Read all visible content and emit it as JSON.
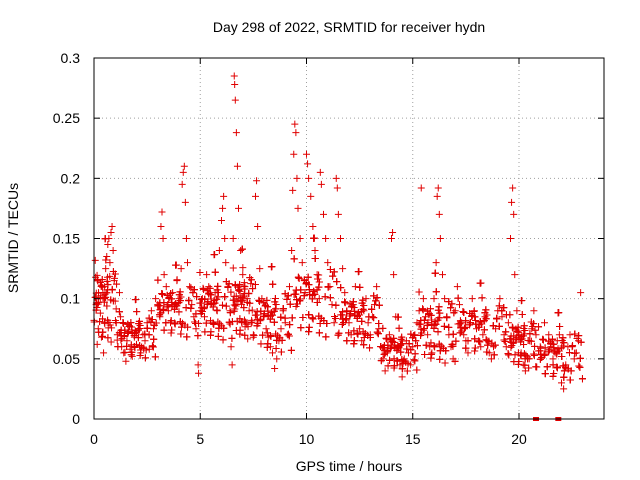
{
  "chart_data": {
    "type": "scatter",
    "title": "Day 298 of 2022, SRMTID for receiver hydn",
    "xlabel": "GPS time / hours",
    "ylabel": "SRMTID / TECUs",
    "xlim": [
      0,
      24
    ],
    "ylim": [
      0,
      0.3
    ],
    "x_ticks": [
      0,
      5,
      10,
      15,
      20
    ],
    "x_tick_labels": [
      "0",
      "5",
      "10",
      "15",
      "20"
    ],
    "y_ticks": [
      0,
      0.05,
      0.1,
      0.15,
      0.2,
      0.25,
      0.3
    ],
    "y_tick_labels": [
      "0",
      "0.05",
      "0.1",
      "0.15",
      "0.2",
      "0.25",
      "0.3"
    ],
    "grid": true,
    "marker": "plus",
    "color": "#e00000",
    "series": [
      {
        "name": "SRMTID",
        "points": [
          [
            0.0,
            0.082
          ],
          [
            0.1,
            0.095
          ],
          [
            0.15,
            0.062
          ],
          [
            0.2,
            0.075
          ],
          [
            0.3,
            0.088
          ],
          [
            0.35,
            0.068
          ],
          [
            0.4,
            0.072
          ],
          [
            0.45,
            0.055
          ],
          [
            0.5,
            0.11
          ],
          [
            0.55,
            0.125
          ],
          [
            0.6,
            0.135
          ],
          [
            0.65,
            0.145
          ],
          [
            0.7,
            0.15
          ],
          [
            0.75,
            0.13
          ],
          [
            0.8,
            0.155
          ],
          [
            0.85,
            0.16
          ],
          [
            0.9,
            0.14
          ],
          [
            0.95,
            0.115
          ],
          [
            1.0,
            0.098
          ],
          [
            1.05,
            0.08
          ],
          [
            1.1,
            0.07
          ],
          [
            1.2,
            0.105
          ],
          [
            1.25,
            0.085
          ],
          [
            1.3,
            0.06
          ],
          [
            1.4,
            0.055
          ],
          [
            1.5,
            0.048
          ],
          [
            1.55,
            0.065
          ],
          [
            1.6,
            0.072
          ],
          [
            1.7,
            0.058
          ],
          [
            1.8,
            0.052
          ],
          [
            1.9,
            0.068
          ],
          [
            2.0,
            0.062
          ],
          [
            2.1,
            0.075
          ],
          [
            2.2,
            0.055
          ],
          [
            2.3,
            0.07
          ],
          [
            2.4,
            0.065
          ],
          [
            2.5,
            0.08
          ],
          [
            2.6,
            0.058
          ],
          [
            2.7,
            0.09
          ],
          [
            2.8,
            0.075
          ],
          [
            2.9,
            0.1
          ],
          [
            3.0,
            0.095
          ],
          [
            3.1,
            0.085
          ],
          [
            3.15,
            0.16
          ],
          [
            3.2,
            0.172
          ],
          [
            3.25,
            0.15
          ],
          [
            3.3,
            0.12
          ],
          [
            3.4,
            0.11
          ],
          [
            3.5,
            0.09
          ],
          [
            3.6,
            0.08
          ],
          [
            3.7,
            0.105
          ],
          [
            3.8,
            0.095
          ],
          [
            3.9,
            0.115
          ],
          [
            4.0,
            0.1
          ],
          [
            4.1,
            0.125
          ],
          [
            4.15,
            0.195
          ],
          [
            4.2,
            0.205
          ],
          [
            4.25,
            0.21
          ],
          [
            4.3,
            0.18
          ],
          [
            4.35,
            0.15
          ],
          [
            4.4,
            0.13
          ],
          [
            4.5,
            0.11
          ],
          [
            4.6,
            0.095
          ],
          [
            4.7,
            0.085
          ],
          [
            4.8,
            0.075
          ],
          [
            4.9,
            0.045
          ],
          [
            4.92,
            0.038
          ],
          [
            5.0,
            0.09
          ],
          [
            5.1,
            0.1
          ],
          [
            5.2,
            0.085
          ],
          [
            5.3,
            0.12
          ],
          [
            5.4,
            0.11
          ],
          [
            5.5,
            0.095
          ],
          [
            5.6,
            0.08
          ],
          [
            5.7,
            0.105
          ],
          [
            5.8,
            0.09
          ],
          [
            5.9,
            0.14
          ],
          [
            6.0,
            0.165
          ],
          [
            6.05,
            0.175
          ],
          [
            6.1,
            0.185
          ],
          [
            6.15,
            0.15
          ],
          [
            6.2,
            0.13
          ],
          [
            6.3,
            0.11
          ],
          [
            6.4,
            0.09
          ],
          [
            6.45,
            0.06
          ],
          [
            6.5,
            0.045
          ],
          [
            6.55,
            0.15
          ],
          [
            6.6,
            0.285
          ],
          [
            6.62,
            0.278
          ],
          [
            6.65,
            0.265
          ],
          [
            6.7,
            0.238
          ],
          [
            6.75,
            0.21
          ],
          [
            6.8,
            0.175
          ],
          [
            6.9,
            0.14
          ],
          [
            7.0,
            0.12
          ],
          [
            7.1,
            0.11
          ],
          [
            7.2,
            0.1
          ],
          [
            7.3,
            0.09
          ],
          [
            7.4,
            0.08
          ],
          [
            7.5,
            0.07
          ],
          [
            7.6,
            0.185
          ],
          [
            7.65,
            0.198
          ],
          [
            7.7,
            0.16
          ],
          [
            7.8,
            0.125
          ],
          [
            7.9,
            0.1
          ],
          [
            8.0,
            0.085
          ],
          [
            8.1,
            0.075
          ],
          [
            8.2,
            0.068
          ],
          [
            8.3,
            0.06
          ],
          [
            8.4,
            0.055
          ],
          [
            8.5,
            0.042
          ],
          [
            8.6,
            0.05
          ],
          [
            8.7,
            0.065
          ],
          [
            8.8,
            0.075
          ],
          [
            8.9,
            0.09
          ],
          [
            9.0,
            0.08
          ],
          [
            9.1,
            0.07
          ],
          [
            9.2,
            0.11
          ],
          [
            9.3,
            0.14
          ],
          [
            9.35,
            0.19
          ],
          [
            9.4,
            0.22
          ],
          [
            9.45,
            0.245
          ],
          [
            9.5,
            0.238
          ],
          [
            9.55,
            0.2
          ],
          [
            9.6,
            0.175
          ],
          [
            9.7,
            0.15
          ],
          [
            9.8,
            0.13
          ],
          [
            9.9,
            0.115
          ],
          [
            10.0,
            0.22
          ],
          [
            10.05,
            0.212
          ],
          [
            10.1,
            0.2
          ],
          [
            10.2,
            0.185
          ],
          [
            10.3,
            0.16
          ],
          [
            10.4,
            0.14
          ],
          [
            10.5,
            0.12
          ],
          [
            10.6,
            0.1
          ],
          [
            10.65,
            0.205
          ],
          [
            10.7,
            0.195
          ],
          [
            10.8,
            0.17
          ],
          [
            10.9,
            0.15
          ],
          [
            11.0,
            0.13
          ],
          [
            11.1,
            0.11
          ],
          [
            11.2,
            0.095
          ],
          [
            11.3,
            0.08
          ],
          [
            11.4,
            0.2
          ],
          [
            11.45,
            0.192
          ],
          [
            11.5,
            0.17
          ],
          [
            11.6,
            0.15
          ],
          [
            11.7,
            0.125
          ],
          [
            11.8,
            0.105
          ],
          [
            11.9,
            0.09
          ],
          [
            12.0,
            0.08
          ],
          [
            12.1,
            0.07
          ],
          [
            12.2,
            0.095
          ],
          [
            12.3,
            0.11
          ],
          [
            12.4,
            0.085
          ],
          [
            12.5,
            0.075
          ],
          [
            12.6,
            0.065
          ],
          [
            12.7,
            0.09
          ],
          [
            12.8,
            0.1
          ],
          [
            12.9,
            0.08
          ],
          [
            13.0,
            0.07
          ],
          [
            13.1,
            0.085
          ],
          [
            13.2,
            0.095
          ],
          [
            13.3,
            0.11
          ],
          [
            13.4,
            0.075
          ],
          [
            13.5,
            0.06
          ],
          [
            13.6,
            0.05
          ],
          [
            13.7,
            0.04
          ],
          [
            13.8,
            0.055
          ],
          [
            13.9,
            0.07
          ],
          [
            14.0,
            0.15
          ],
          [
            14.05,
            0.155
          ],
          [
            14.1,
            0.12
          ],
          [
            14.2,
            0.085
          ],
          [
            14.3,
            0.06
          ],
          [
            14.4,
            0.045
          ],
          [
            14.5,
            0.035
          ],
          [
            14.6,
            0.05
          ],
          [
            14.7,
            0.065
          ],
          [
            14.8,
            0.055
          ],
          [
            14.9,
            0.045
          ],
          [
            15.0,
            0.06
          ],
          [
            15.1,
            0.07
          ],
          [
            15.2,
            0.08
          ],
          [
            15.3,
            0.09
          ],
          [
            15.4,
            0.192
          ],
          [
            15.5,
            0.1
          ],
          [
            15.6,
            0.085
          ],
          [
            15.7,
            0.07
          ],
          [
            15.8,
            0.06
          ],
          [
            15.9,
            0.055
          ],
          [
            16.0,
            0.1
          ],
          [
            16.1,
            0.13
          ],
          [
            16.15,
            0.185
          ],
          [
            16.2,
            0.192
          ],
          [
            16.25,
            0.17
          ],
          [
            16.3,
            0.15
          ],
          [
            16.4,
            0.12
          ],
          [
            16.5,
            0.1
          ],
          [
            16.6,
            0.085
          ],
          [
            16.7,
            0.07
          ],
          [
            16.8,
            0.06
          ],
          [
            16.9,
            0.05
          ],
          [
            17.0,
            0.09
          ],
          [
            17.1,
            0.11
          ],
          [
            17.2,
            0.095
          ],
          [
            17.3,
            0.08
          ],
          [
            17.4,
            0.07
          ],
          [
            17.5,
            0.065
          ],
          [
            17.6,
            0.055
          ],
          [
            17.7,
            0.08
          ],
          [
            17.8,
            0.1
          ],
          [
            17.9,
            0.09
          ],
          [
            18.0,
            0.075
          ],
          [
            18.1,
            0.065
          ],
          [
            18.2,
            0.06
          ],
          [
            18.3,
            0.07
          ],
          [
            18.4,
            0.085
          ],
          [
            18.5,
            0.065
          ],
          [
            18.6,
            0.055
          ],
          [
            18.7,
            0.05
          ],
          [
            18.8,
            0.06
          ],
          [
            18.9,
            0.075
          ],
          [
            19.0,
            0.09
          ],
          [
            19.1,
            0.1
          ],
          [
            19.2,
            0.085
          ],
          [
            19.3,
            0.07
          ],
          [
            19.4,
            0.06
          ],
          [
            19.5,
            0.08
          ],
          [
            19.6,
            0.15
          ],
          [
            19.65,
            0.18
          ],
          [
            19.7,
            0.192
          ],
          [
            19.75,
            0.17
          ],
          [
            19.8,
            0.12
          ],
          [
            19.9,
            0.09
          ],
          [
            20.0,
            0.07
          ],
          [
            20.1,
            0.055
          ],
          [
            20.2,
            0.045
          ],
          [
            20.3,
            0.04
          ],
          [
            20.4,
            0.05
          ],
          [
            20.5,
            0.065
          ],
          [
            20.6,
            0.075
          ],
          [
            20.7,
            0.09
          ],
          [
            20.8,
            0.07
          ],
          [
            21.0,
            0.06
          ],
          [
            21.2,
            0.08
          ],
          [
            21.4,
            0.07
          ],
          [
            21.5,
            0.06
          ],
          [
            21.6,
            0.05
          ],
          [
            21.7,
            0.055
          ],
          [
            21.8,
            0.065
          ],
          [
            21.9,
            0.07
          ],
          [
            22.0,
            0.03
          ],
          [
            22.1,
            0.025
          ],
          [
            22.2,
            0.045
          ],
          [
            22.3,
            0.06
          ],
          [
            22.4,
            0.07
          ],
          [
            22.5,
            0.06
          ],
          [
            22.6,
            0.05
          ],
          [
            22.7,
            0.055
          ],
          [
            22.8,
            0.065
          ],
          [
            22.9,
            0.105
          ]
        ]
      }
    ],
    "cluster_ranges": [
      [
        0.0,
        1.1,
        0.045,
        0.16
      ],
      [
        1.1,
        2.9,
        0.04,
        0.105
      ],
      [
        2.9,
        4.9,
        0.055,
        0.135
      ],
      [
        4.9,
        6.5,
        0.05,
        0.145
      ],
      [
        6.5,
        7.5,
        0.05,
        0.15
      ],
      [
        7.5,
        9.3,
        0.04,
        0.135
      ],
      [
        9.3,
        11.5,
        0.05,
        0.16
      ],
      [
        11.5,
        13.5,
        0.045,
        0.13
      ],
      [
        13.5,
        15.2,
        0.03,
        0.09
      ],
      [
        15.2,
        17.0,
        0.03,
        0.13
      ],
      [
        17.0,
        19.5,
        0.04,
        0.12
      ],
      [
        19.5,
        20.8,
        0.03,
        0.105
      ],
      [
        20.8,
        23.0,
        0.02,
        0.095
      ]
    ],
    "zero_markers": [
      20.8,
      21.85
    ]
  }
}
